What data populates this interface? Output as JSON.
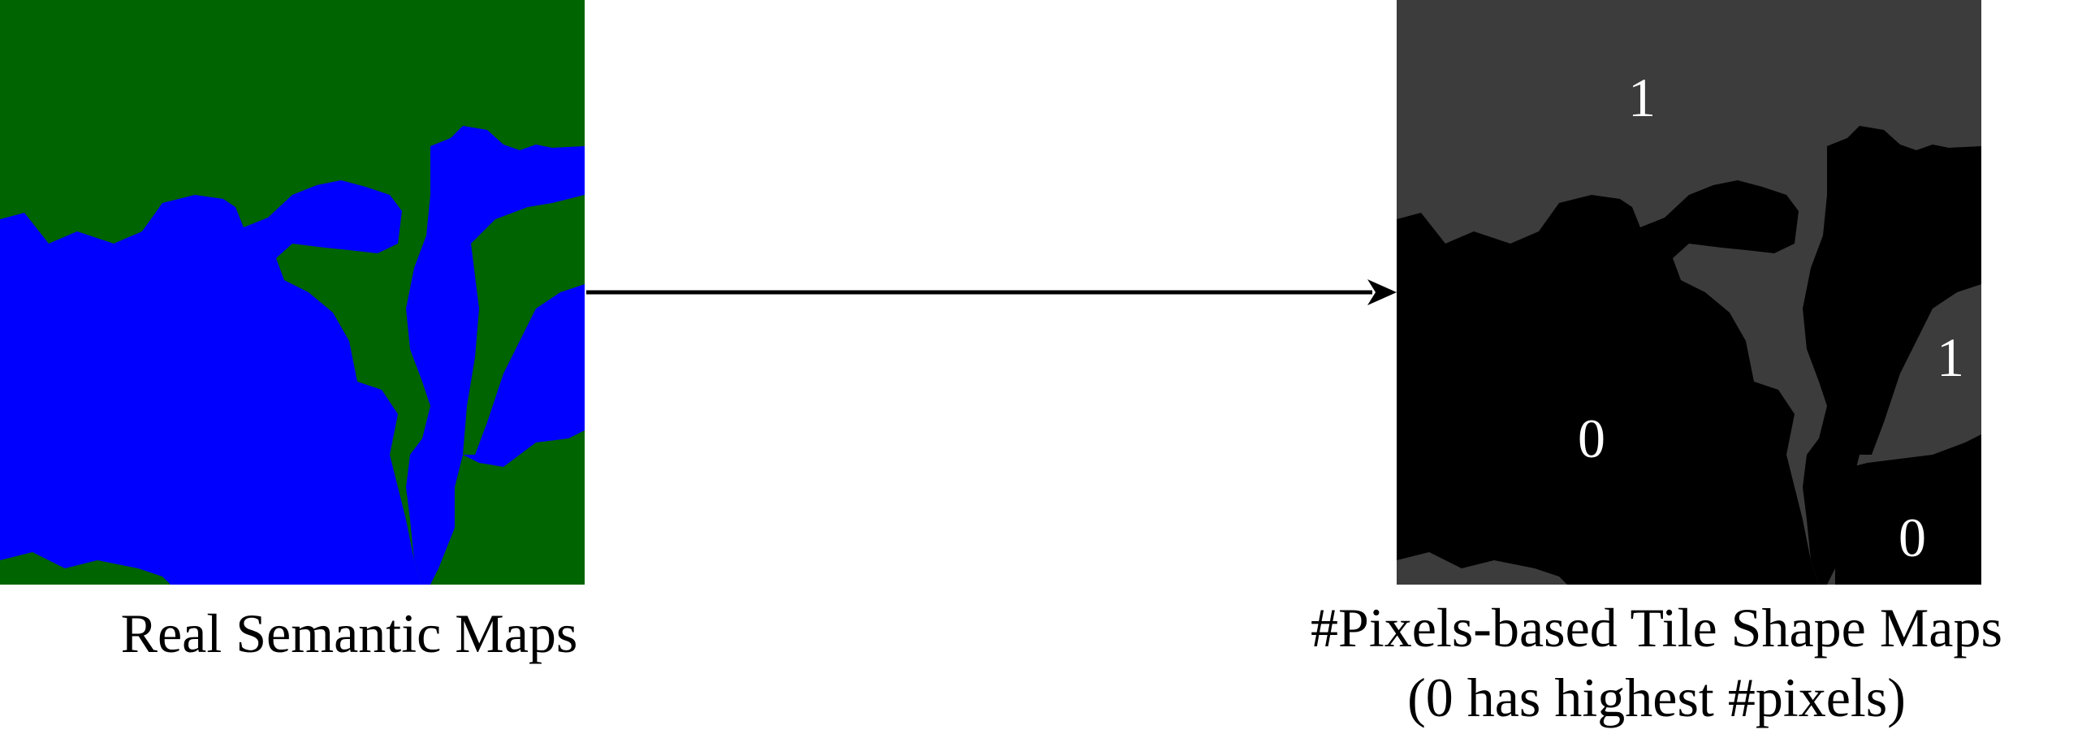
{
  "left_panel": {
    "caption": "Real Semantic Maps",
    "colors": {
      "land": "#006400",
      "water": "#0000ff"
    }
  },
  "right_panel": {
    "caption_line1": "#Pixels-based Tile Shape Maps",
    "caption_line2": "(0 has highest #pixels)",
    "colors": {
      "rank_0": "#000000",
      "rank_1": "#3c3c3c",
      "text": "#ffffff"
    },
    "region_labels": [
      "1",
      "1",
      "0",
      "0"
    ]
  },
  "arrow": {
    "color": "#000000"
  }
}
